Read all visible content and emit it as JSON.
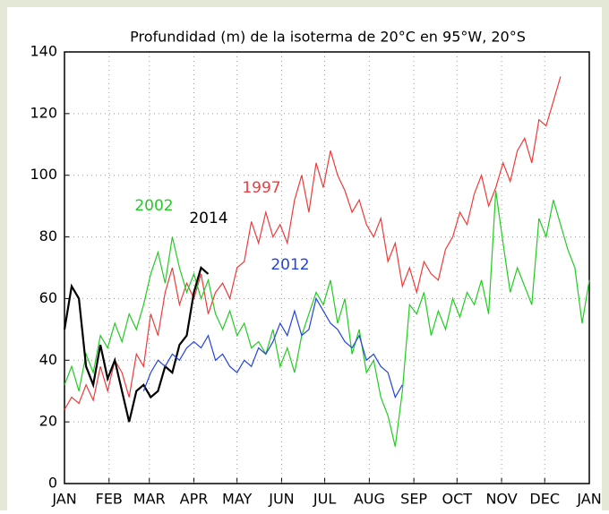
{
  "chart_data": {
    "type": "line",
    "title": "Profundidad (m) de la isoterma de 20°C en 95°W, 20°S",
    "x": [
      0,
      5,
      10,
      15,
      20,
      25,
      30,
      35,
      40,
      45,
      50,
      55,
      60,
      65,
      70,
      75,
      80,
      85,
      90,
      95,
      100,
      105,
      110,
      115,
      120,
      125,
      130,
      135,
      140,
      145,
      150,
      155,
      160,
      165,
      170,
      175,
      180,
      185,
      190,
      195,
      200,
      205,
      210,
      215,
      220,
      225,
      230,
      235,
      240,
      245,
      250,
      255,
      260,
      265,
      270,
      275,
      280,
      285,
      290,
      295,
      300,
      305,
      310,
      315,
      320,
      325,
      330,
      335,
      340,
      345,
      350,
      355,
      360,
      365
    ],
    "xlim": [
      0,
      365
    ],
    "xticks": [
      {
        "value": 0,
        "label": "JAN"
      },
      {
        "value": 31,
        "label": "FEB"
      },
      {
        "value": 59,
        "label": "MAR"
      },
      {
        "value": 90,
        "label": "APR"
      },
      {
        "value": 120,
        "label": "MAY"
      },
      {
        "value": 151,
        "label": "JUN"
      },
      {
        "value": 181,
        "label": "JUL"
      },
      {
        "value": 212,
        "label": "AUG"
      },
      {
        "value": 243,
        "label": "SEP"
      },
      {
        "value": 273,
        "label": "OCT"
      },
      {
        "value": 304,
        "label": "NOV"
      },
      {
        "value": 334,
        "label": "DEC"
      },
      {
        "value": 365,
        "label": "JAN"
      }
    ],
    "ylim": [
      0,
      140
    ],
    "yticks": [
      0,
      20,
      40,
      60,
      80,
      100,
      120,
      140
    ],
    "grid": true,
    "series": [
      {
        "name": "1997",
        "color": "#ee3b3b",
        "values": [
          24,
          28,
          26,
          32,
          27,
          38,
          30,
          40,
          36,
          28,
          42,
          38,
          55,
          48,
          62,
          70,
          58,
          65,
          60,
          68,
          55,
          62,
          65,
          60,
          70,
          72,
          85,
          78,
          88,
          80,
          84,
          78,
          92,
          100,
          88,
          104,
          96,
          108,
          100,
          95,
          88,
          92,
          84,
          80,
          86,
          72,
          78,
          64,
          70,
          62,
          72,
          68,
          66,
          76,
          80,
          88,
          84,
          94,
          100,
          90,
          96,
          104,
          98,
          108,
          112,
          104,
          118,
          116,
          124,
          132,
          null,
          null,
          null,
          null
        ]
      },
      {
        "name": "2002",
        "color": "#22cc22",
        "values": [
          32,
          38,
          30,
          42,
          36,
          48,
          44,
          52,
          46,
          55,
          50,
          58,
          68,
          75,
          65,
          80,
          70,
          62,
          68,
          60,
          66,
          55,
          50,
          56,
          48,
          52,
          44,
          46,
          42,
          50,
          38,
          44,
          36,
          48,
          55,
          62,
          58,
          66,
          52,
          60,
          42,
          50,
          36,
          40,
          28,
          22,
          12,
          30,
          58,
          55,
          62,
          48,
          56,
          50,
          60,
          54,
          62,
          58,
          66,
          55,
          95,
          78,
          62,
          70,
          64,
          58,
          86,
          80,
          92,
          84,
          76,
          70,
          52,
          66
        ]
      },
      {
        "name": "2014",
        "color": "#000000",
        "values": [
          50,
          64,
          60,
          38,
          32,
          45,
          34,
          40,
          30,
          20,
          30,
          32,
          28,
          30,
          38,
          36,
          45,
          48,
          62,
          70,
          68,
          null,
          null,
          null,
          null,
          null,
          null,
          null,
          null,
          null,
          null,
          null,
          null,
          null,
          null,
          null,
          null,
          null,
          null,
          null,
          null,
          null,
          null,
          null,
          null,
          null,
          null,
          null,
          null,
          null,
          null,
          null,
          null,
          null,
          null,
          null,
          null,
          null,
          null,
          null,
          null,
          null,
          null,
          null,
          null,
          null,
          null,
          null,
          null,
          null,
          null,
          null,
          null,
          null
        ]
      },
      {
        "name": "2012",
        "color": "#2244dd",
        "values": [
          null,
          null,
          null,
          null,
          null,
          null,
          null,
          null,
          null,
          null,
          null,
          30,
          36,
          40,
          38,
          42,
          40,
          44,
          46,
          44,
          48,
          40,
          42,
          38,
          36,
          40,
          38,
          44,
          42,
          46,
          52,
          48,
          56,
          48,
          50,
          60,
          56,
          52,
          50,
          46,
          44,
          48,
          40,
          42,
          38,
          36,
          28,
          32,
          null,
          null,
          null,
          null,
          null,
          null,
          null,
          null,
          null,
          null,
          null,
          null,
          null,
          null,
          null,
          null,
          null,
          null,
          null,
          null,
          null,
          null,
          null,
          null,
          null,
          null
        ]
      }
    ]
  }
}
